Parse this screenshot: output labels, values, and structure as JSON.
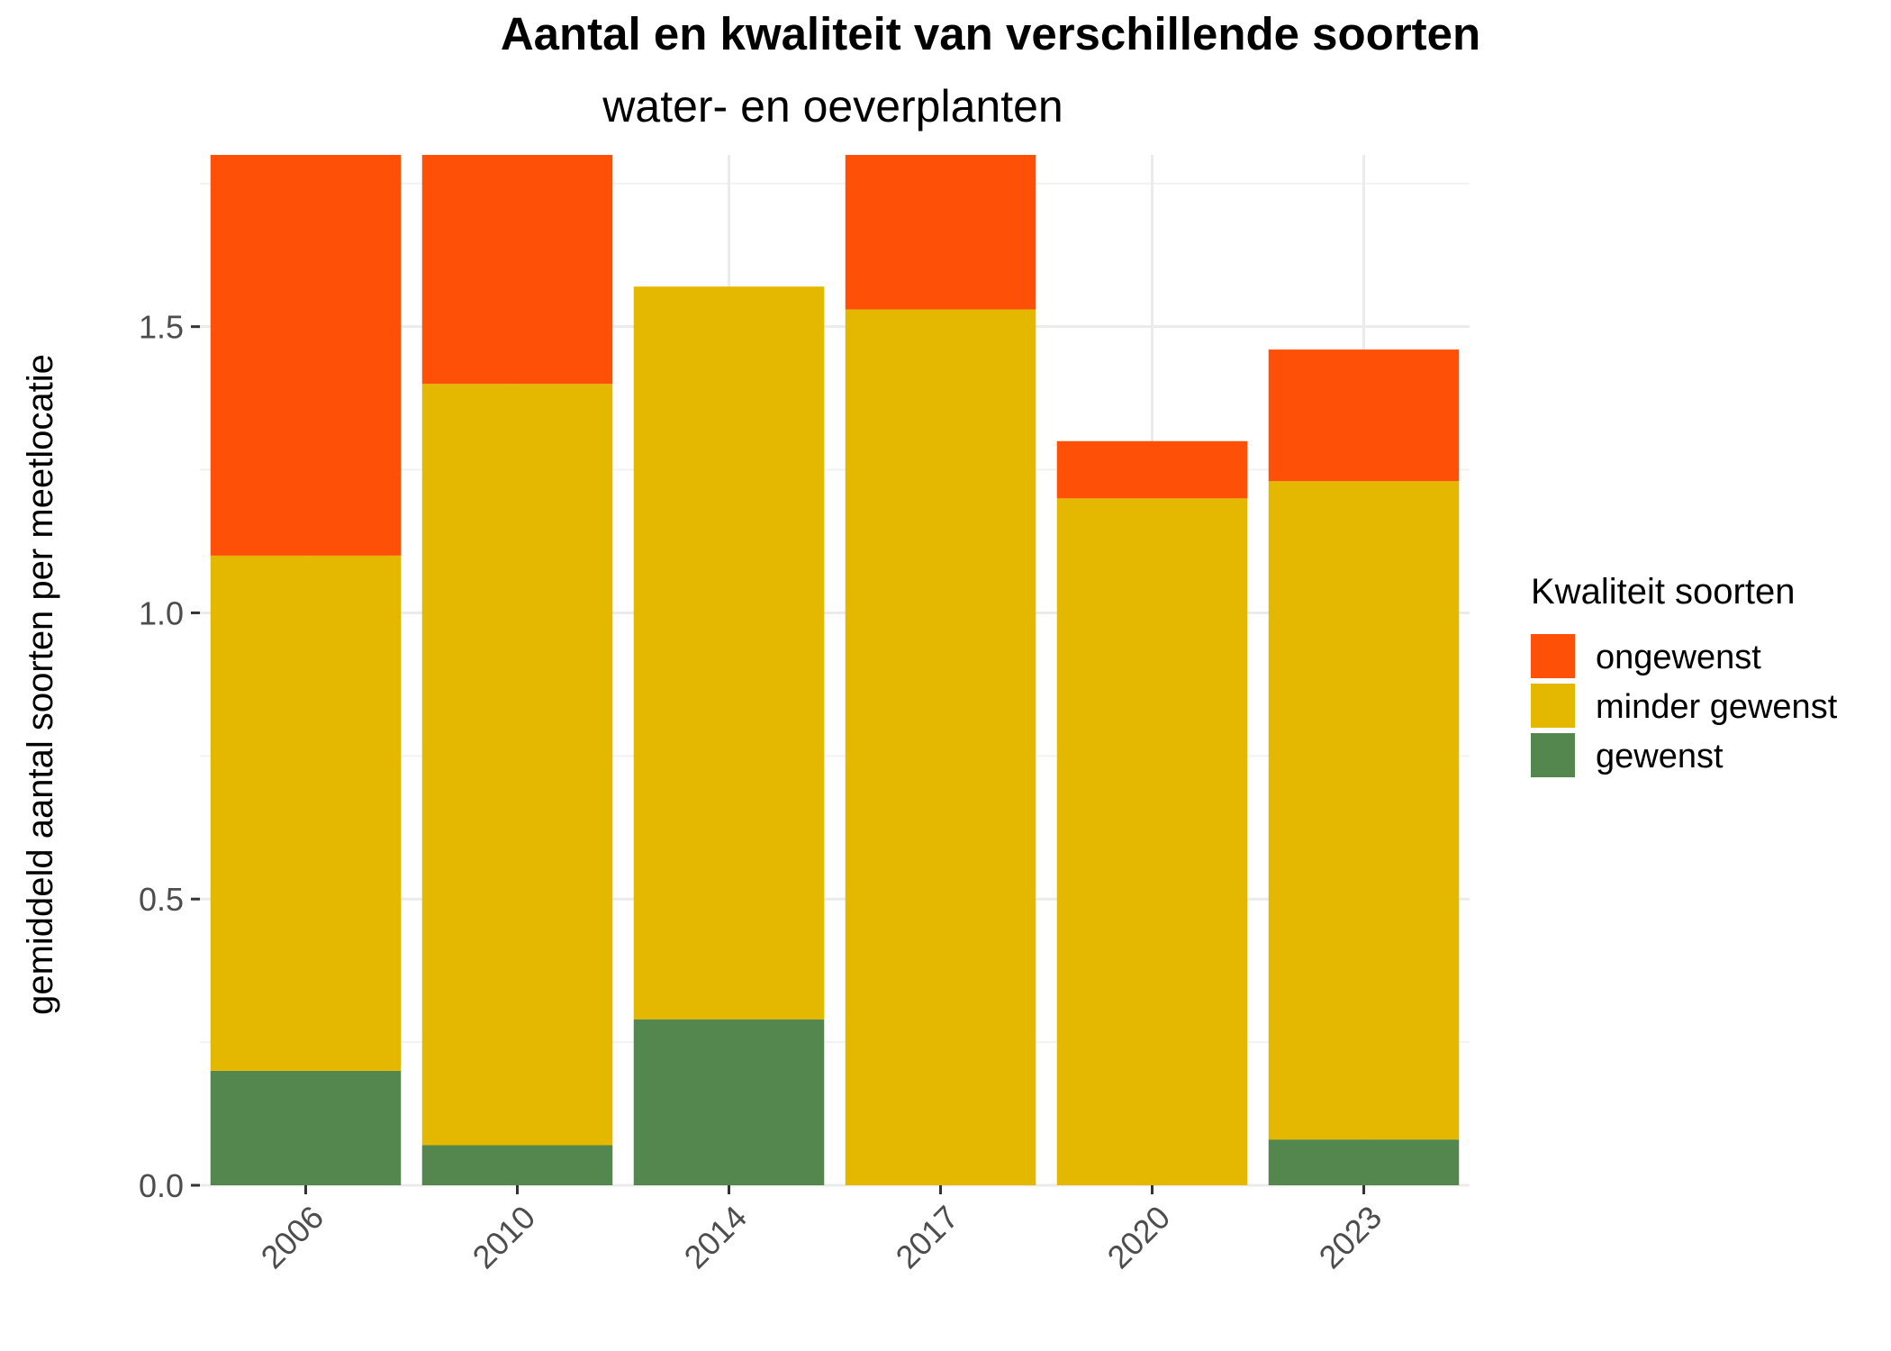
{
  "chart_data": {
    "type": "bar",
    "stacked": true,
    "title": "Aantal en kwaliteit van verschillende soorten",
    "subtitle": "water- en oeverplanten",
    "xlabel": "",
    "ylabel": "gemiddeld aantal soorten per meetlocatie",
    "categories": [
      "2006",
      "2010",
      "2014",
      "2017",
      "2020",
      "2023"
    ],
    "series": [
      {
        "name": "gewenst",
        "color": "#53874E",
        "values": [
          0.2,
          0.07,
          0.29,
          0.0,
          0.0,
          0.08
        ]
      },
      {
        "name": "minder gewenst",
        "color": "#E5B800",
        "values": [
          0.9,
          1.33,
          1.28,
          1.53,
          1.2,
          1.15
        ]
      },
      {
        "name": "ongewenst",
        "color": "#FF5008",
        "values": [
          0.7,
          0.4,
          0.0,
          0.27,
          0.1,
          0.23
        ]
      }
    ],
    "ylim": [
      0,
      1.8
    ],
    "yticks": [
      "0.0",
      "0.5",
      "1.0",
      "1.5"
    ],
    "ytick_values": [
      0,
      0.5,
      1.0,
      1.5
    ],
    "grid": true,
    "legend": {
      "title": "Kwaliteit soorten",
      "placement": "right",
      "order": [
        "ongewenst",
        "minder gewenst",
        "gewenst"
      ]
    }
  }
}
